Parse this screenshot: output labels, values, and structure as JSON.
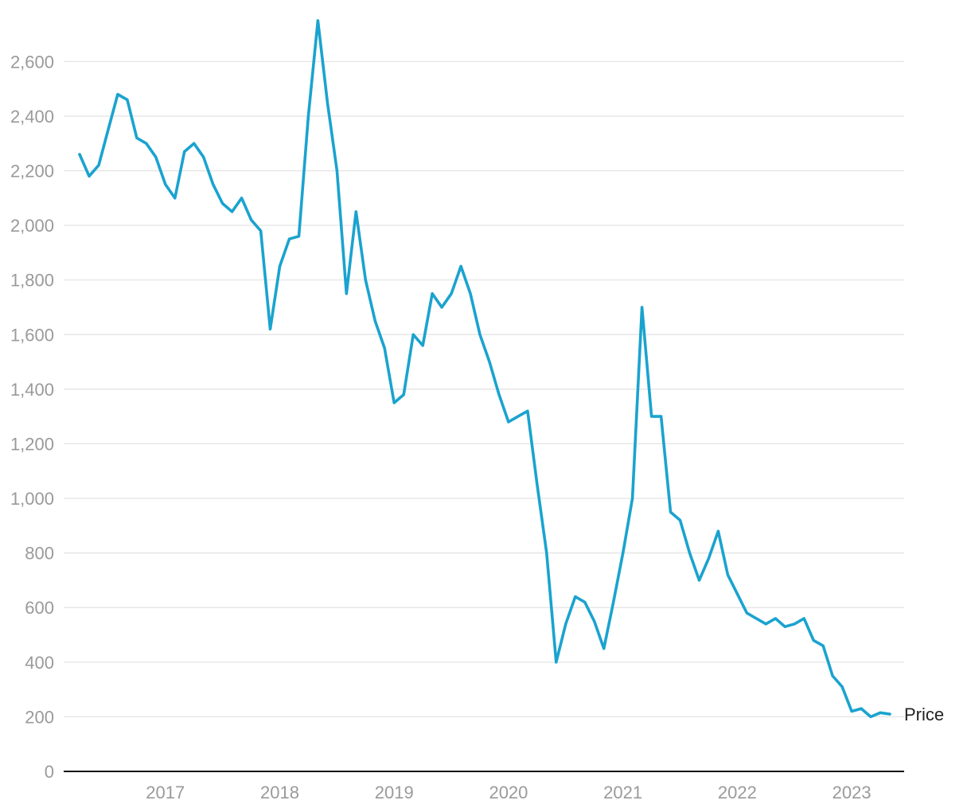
{
  "chart_data": {
    "type": "line",
    "xlabel": "",
    "ylabel": "",
    "ylim": [
      0,
      2700
    ],
    "yticks": [
      0,
      200,
      400,
      600,
      800,
      1000,
      1200,
      1400,
      1600,
      1800,
      2000,
      2200,
      2400,
      2600
    ],
    "ytick_labels": [
      "0",
      "200",
      "400",
      "600",
      "800",
      "1,000",
      "1,200",
      "1,400",
      "1,600",
      "1,800",
      "2,000",
      "2,200",
      "2,400",
      "2,600"
    ],
    "xlim": [
      "2016-04",
      "2023-05"
    ],
    "xticks": [
      "2017",
      "2018",
      "2019",
      "2020",
      "2021",
      "2022",
      "2023"
    ],
    "grid": "horizontal",
    "legend": "series label at end of line, right",
    "colors": {
      "series": "#1aa3cf",
      "grid": "#e2e2e2",
      "axis": "#111111",
      "tick": "#9a9a9a"
    },
    "series": [
      {
        "name": "Price",
        "x": [
          "2016-04",
          "2016-05",
          "2016-06",
          "2016-07",
          "2016-08",
          "2016-09",
          "2016-10",
          "2016-11",
          "2016-12",
          "2017-01",
          "2017-02",
          "2017-03",
          "2017-04",
          "2017-05",
          "2017-06",
          "2017-07",
          "2017-08",
          "2017-09",
          "2017-10",
          "2017-11",
          "2017-12",
          "2018-01",
          "2018-02",
          "2018-03",
          "2018-04",
          "2018-05",
          "2018-06",
          "2018-07",
          "2018-08",
          "2018-09",
          "2018-10",
          "2018-11",
          "2018-12",
          "2019-01",
          "2019-02",
          "2019-03",
          "2019-04",
          "2019-05",
          "2019-06",
          "2019-07",
          "2019-08",
          "2019-09",
          "2019-10",
          "2019-11",
          "2019-12",
          "2020-01",
          "2020-02",
          "2020-03",
          "2020-04",
          "2020-05",
          "2020-06",
          "2020-07",
          "2020-08",
          "2020-09",
          "2020-10",
          "2020-11",
          "2020-12",
          "2021-01",
          "2021-02",
          "2021-03",
          "2021-04",
          "2021-05",
          "2021-06",
          "2021-07",
          "2021-08",
          "2021-09",
          "2021-10",
          "2021-11",
          "2021-12",
          "2022-01",
          "2022-02",
          "2022-03",
          "2022-04",
          "2022-05",
          "2022-06",
          "2022-07",
          "2022-08",
          "2022-09",
          "2022-10",
          "2022-11",
          "2022-12",
          "2023-01",
          "2023-02",
          "2023-03",
          "2023-04",
          "2023-05"
        ],
        "values": [
          2260,
          2180,
          2220,
          2350,
          2480,
          2460,
          2320,
          2300,
          2250,
          2150,
          2100,
          2270,
          2300,
          2250,
          2150,
          2080,
          2050,
          2100,
          2020,
          1980,
          1620,
          1850,
          1950,
          1960,
          2400,
          2750,
          2450,
          2200,
          1750,
          2050,
          1800,
          1650,
          1550,
          1350,
          1380,
          1600,
          1560,
          1750,
          1700,
          1750,
          1850,
          1750,
          1600,
          1500,
          1380,
          1280,
          1300,
          1320,
          1050,
          800,
          400,
          540,
          640,
          620,
          550,
          450,
          620,
          800,
          1000,
          1700,
          1300,
          1300,
          950,
          920,
          800,
          700,
          780,
          880,
          720,
          650,
          580,
          560,
          540,
          560,
          530,
          540,
          560,
          480,
          460,
          350,
          310,
          220,
          230,
          200,
          215,
          210
        ]
      }
    ]
  }
}
